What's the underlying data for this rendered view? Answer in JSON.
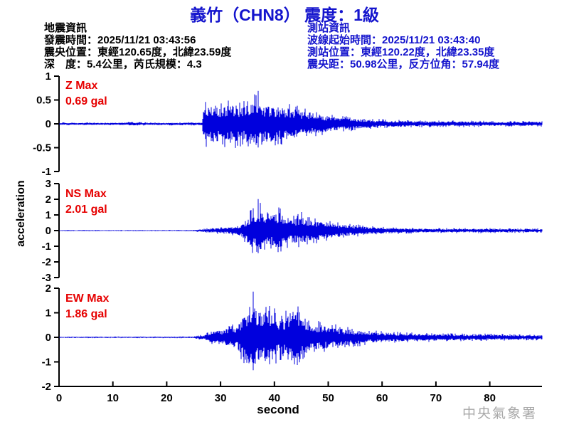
{
  "header": {
    "title": "義竹（CHN8） 震度：1級"
  },
  "quake_info": {
    "heading": "地震資訊",
    "lines": [
      "發震時間：2025/11/21 03:43:56",
      "震央位置：東經120.65度，北緯23.59度",
      "深　度：5.4公里，芮氏規模：4.3"
    ]
  },
  "station_info": {
    "heading": "測站資訊",
    "lines": [
      "波線起始時間：2025/11/21 03:43:40",
      "測站位置：東經120.22度，北緯23.35度",
      "震央距：50.98公里，反方位角：57.94度"
    ]
  },
  "footer": {
    "watermark": "中央氣象署"
  },
  "colors": {
    "title_blue": "#1414cd",
    "station_info_blue": "#1414cd",
    "trace_blue": "#0000dd",
    "max_label_red": "#e60000",
    "axis_black": "#000000",
    "watermark_gray": "#a9a9a9",
    "background": "#ffffff"
  },
  "chart_data": {
    "type": "line",
    "subtype": "seismogram-3-component",
    "xlabel": "second",
    "ylabel": "acceleration",
    "x_ticks": [
      0,
      10,
      20,
      30,
      40,
      50,
      60,
      70,
      80
    ],
    "x_range": [
      0,
      89.5
    ],
    "grid": false,
    "traces": [
      {
        "name": "Z",
        "label": "Z Max",
        "max_label": "0.69 gal",
        "max_gal": 0.69,
        "ylim": [
          -1,
          1
        ],
        "y_ticks": [
          1,
          0.5,
          0,
          -0.5,
          -1
        ],
        "onset_s": 26.9,
        "peak_s": 37,
        "envelope": [
          [
            0,
            0.03
          ],
          [
            10,
            0.03
          ],
          [
            13,
            0.045
          ],
          [
            18,
            0.03
          ],
          [
            23,
            0.035
          ],
          [
            26.6,
            0.035
          ],
          [
            26.9,
            0.5
          ],
          [
            28,
            0.55
          ],
          [
            30,
            0.5
          ],
          [
            32,
            0.55
          ],
          [
            34,
            0.5
          ],
          [
            36,
            0.62
          ],
          [
            37,
            0.69
          ],
          [
            38,
            0.55
          ],
          [
            40,
            0.5
          ],
          [
            42,
            0.45
          ],
          [
            44,
            0.42
          ],
          [
            46,
            0.35
          ],
          [
            48,
            0.28
          ],
          [
            50,
            0.22
          ],
          [
            53,
            0.17
          ],
          [
            56,
            0.13
          ],
          [
            60,
            0.1
          ],
          [
            65,
            0.08
          ],
          [
            70,
            0.07
          ],
          [
            75,
            0.07
          ],
          [
            80,
            0.06
          ],
          [
            85,
            0.06
          ],
          [
            89.5,
            0.06
          ]
        ]
      },
      {
        "name": "NS",
        "label": "NS Max",
        "max_label": "2.01 gal",
        "max_gal": 2.01,
        "ylim": [
          -3,
          3
        ],
        "y_ticks": [
          3,
          2,
          1,
          0,
          -1,
          -2,
          -3
        ],
        "onset_s": 27,
        "peak_s": 37,
        "envelope": [
          [
            0,
            0.04
          ],
          [
            20,
            0.04
          ],
          [
            25,
            0.05
          ],
          [
            27,
            0.13
          ],
          [
            29,
            0.2
          ],
          [
            31,
            0.25
          ],
          [
            33,
            0.35
          ],
          [
            34,
            0.6
          ],
          [
            35,
            1.1
          ],
          [
            36,
            1.5
          ],
          [
            37,
            2.01
          ],
          [
            38,
            1.4
          ],
          [
            39,
            1.2
          ],
          [
            40,
            1.5
          ],
          [
            41,
            1.7
          ],
          [
            42,
            1.2
          ],
          [
            43,
            1.0
          ],
          [
            44,
            1.1
          ],
          [
            45,
            1.2
          ],
          [
            46,
            1.0
          ],
          [
            47,
            0.85
          ],
          [
            48,
            0.9
          ],
          [
            49,
            0.7
          ],
          [
            50,
            0.75
          ],
          [
            52,
            0.55
          ],
          [
            54,
            0.45
          ],
          [
            56,
            0.38
          ],
          [
            58,
            0.3
          ],
          [
            60,
            0.26
          ],
          [
            63,
            0.22
          ],
          [
            66,
            0.19
          ],
          [
            70,
            0.17
          ],
          [
            75,
            0.16
          ],
          [
            80,
            0.17
          ],
          [
            85,
            0.15
          ],
          [
            89.5,
            0.14
          ]
        ]
      },
      {
        "name": "EW",
        "label": "EW Max",
        "max_label": "1.86 gal",
        "max_gal": 1.86,
        "ylim": [
          -2,
          2
        ],
        "y_ticks": [
          2,
          1,
          0,
          -1,
          -2
        ],
        "onset_s": 27,
        "peak_s": 36,
        "envelope": [
          [
            0,
            0.03
          ],
          [
            20,
            0.035
          ],
          [
            25,
            0.04
          ],
          [
            27,
            0.12
          ],
          [
            28,
            0.25
          ],
          [
            29,
            0.35
          ],
          [
            30,
            0.4
          ],
          [
            31,
            0.45
          ],
          [
            32,
            0.5
          ],
          [
            33,
            0.6
          ],
          [
            34,
            1.0
          ],
          [
            35,
            1.6
          ],
          [
            36,
            1.86
          ],
          [
            37,
            1.5
          ],
          [
            38,
            1.3
          ],
          [
            39,
            1.55
          ],
          [
            40,
            1.2
          ],
          [
            41,
            1.0
          ],
          [
            42,
            1.1
          ],
          [
            43,
            1.4
          ],
          [
            44,
            1.65
          ],
          [
            45,
            1.3
          ],
          [
            46,
            1.0
          ],
          [
            47,
            0.85
          ],
          [
            48,
            0.75
          ],
          [
            50,
            0.6
          ],
          [
            52,
            0.5
          ],
          [
            54,
            0.42
          ],
          [
            56,
            0.36
          ],
          [
            58,
            0.3
          ],
          [
            60,
            0.27
          ],
          [
            63,
            0.23
          ],
          [
            66,
            0.2
          ],
          [
            70,
            0.18
          ],
          [
            75,
            0.16
          ],
          [
            80,
            0.15
          ],
          [
            85,
            0.13
          ],
          [
            89.5,
            0.12
          ]
        ]
      }
    ]
  }
}
